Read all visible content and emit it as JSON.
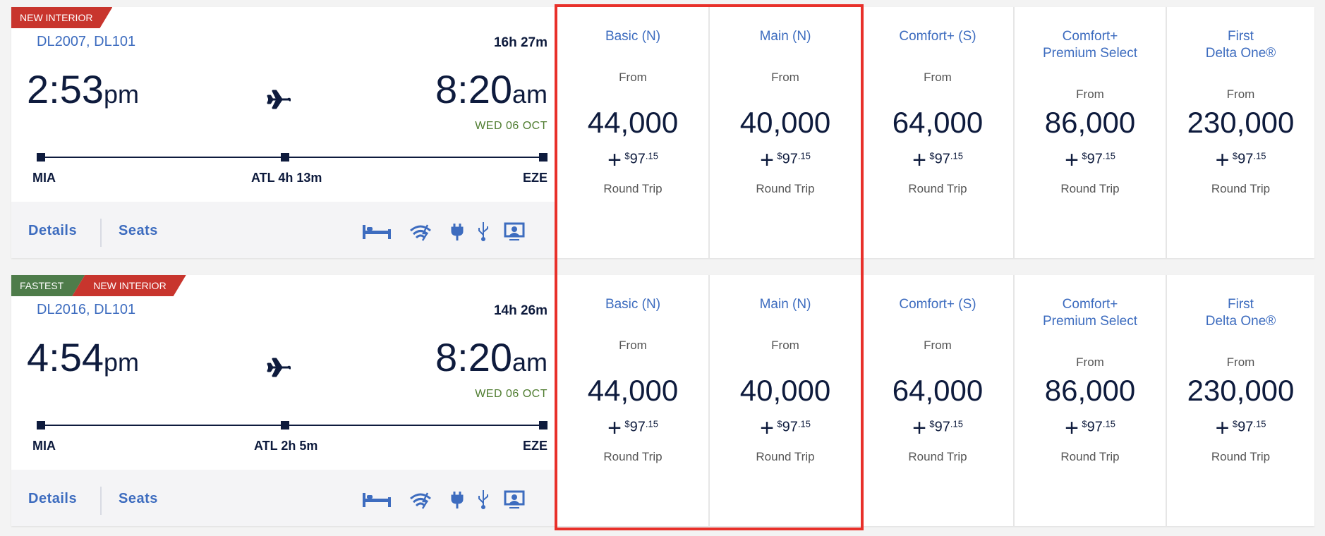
{
  "colors": {
    "accent_blue": "#3d6cbf",
    "navy": "#0e1b3d",
    "badge_red": "#c8352d",
    "badge_green": "#4e7c4a",
    "date_green": "#4e7c2f",
    "highlight": "#e8302a"
  },
  "flights": [
    {
      "badges": [
        "NEW INTERIOR"
      ],
      "flight_numbers": "DL2007, DL101",
      "duration": "16h 27m",
      "depart_time": "2:53",
      "depart_ampm": "pm",
      "arrive_time": "8:20",
      "arrive_ampm": "am",
      "arrive_date": "WED 06 OCT",
      "origin": "MIA",
      "stop": "ATL 4h 13m",
      "destination": "EZE",
      "details_label": "Details",
      "seats_label": "Seats",
      "amenities": [
        "flat-bed-icon",
        "wifi-icon",
        "power-outlet-icon",
        "usb-icon",
        "seatback-screen-icon"
      ],
      "fares": [
        {
          "name": "Basic (N)",
          "from": "From",
          "miles": "44,000",
          "plus": "+",
          "currency": "$",
          "dollars": "97",
          "cents": ".15",
          "trip": "Round Trip"
        },
        {
          "name": "Main (N)",
          "from": "From",
          "miles": "40,000",
          "plus": "+",
          "currency": "$",
          "dollars": "97",
          "cents": ".15",
          "trip": "Round Trip"
        },
        {
          "name": "Comfort+ (S)",
          "from": "From",
          "miles": "64,000",
          "plus": "+",
          "currency": "$",
          "dollars": "97",
          "cents": ".15",
          "trip": "Round Trip"
        },
        {
          "name": "Comfort+",
          "name2": "Premium Select",
          "from": "From",
          "miles": "86,000",
          "plus": "+",
          "currency": "$",
          "dollars": "97",
          "cents": ".15",
          "trip": "Round Trip"
        },
        {
          "name": "First",
          "name2": "Delta One®",
          "from": "From",
          "miles": "230,000",
          "plus": "+",
          "currency": "$",
          "dollars": "97",
          "cents": ".15",
          "trip": "Round Trip"
        }
      ]
    },
    {
      "badges": [
        "FASTEST",
        "NEW INTERIOR"
      ],
      "flight_numbers": "DL2016, DL101",
      "duration": "14h 26m",
      "depart_time": "4:54",
      "depart_ampm": "pm",
      "arrive_time": "8:20",
      "arrive_ampm": "am",
      "arrive_date": "WED 06 OCT",
      "origin": "MIA",
      "stop": "ATL 2h 5m",
      "destination": "EZE",
      "details_label": "Details",
      "seats_label": "Seats",
      "amenities": [
        "flat-bed-icon",
        "wifi-icon",
        "power-outlet-icon",
        "usb-icon",
        "seatback-screen-icon"
      ],
      "fares": [
        {
          "name": "Basic (N)",
          "from": "From",
          "miles": "44,000",
          "plus": "+",
          "currency": "$",
          "dollars": "97",
          "cents": ".15",
          "trip": "Round Trip"
        },
        {
          "name": "Main (N)",
          "from": "From",
          "miles": "40,000",
          "plus": "+",
          "currency": "$",
          "dollars": "97",
          "cents": ".15",
          "trip": "Round Trip"
        },
        {
          "name": "Comfort+ (S)",
          "from": "From",
          "miles": "64,000",
          "plus": "+",
          "currency": "$",
          "dollars": "97",
          "cents": ".15",
          "trip": "Round Trip"
        },
        {
          "name": "Comfort+",
          "name2": "Premium Select",
          "from": "From",
          "miles": "86,000",
          "plus": "+",
          "currency": "$",
          "dollars": "97",
          "cents": ".15",
          "trip": "Round Trip"
        },
        {
          "name": "First",
          "name2": "Delta One®",
          "from": "From",
          "miles": "230,000",
          "plus": "+",
          "currency": "$",
          "dollars": "97",
          "cents": ".15",
          "trip": "Round Trip"
        }
      ]
    }
  ]
}
